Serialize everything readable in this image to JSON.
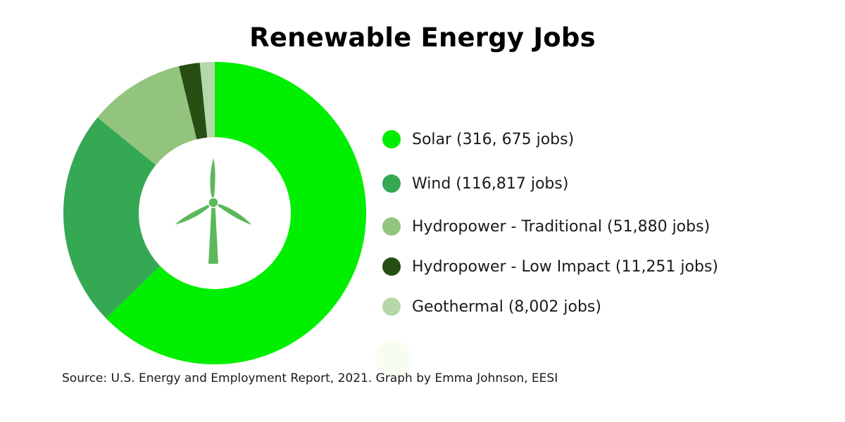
{
  "chart_data": {
    "type": "pie",
    "style": "donut",
    "title": "Renewable Energy Jobs",
    "categories": [
      "Solar",
      "Wind",
      "Hydropower - Traditional",
      "Hydropower - Low Impact",
      "Geothermal"
    ],
    "values": [
      316675,
      116817,
      51880,
      11251,
      8002
    ],
    "legend_labels": [
      "Solar (316, 675 jobs)",
      "Wind (116,817 jobs)",
      "Hydropower - Traditional (51,880 jobs)",
      "Hydropower - Low Impact (11,251 jobs)",
      "Geothermal (8,002 jobs)"
    ],
    "colors": [
      "#00ee00",
      "#35a853",
      "#93c47d",
      "#274e13",
      "#b6d7a8"
    ],
    "legend_position": "right",
    "center_icon": "wind-turbine-icon",
    "center_icon_color": "#5cb85c",
    "source": "Source: U.S. Energy and Employment Report, 2021. Graph by Emma Johnson, EESI"
  }
}
